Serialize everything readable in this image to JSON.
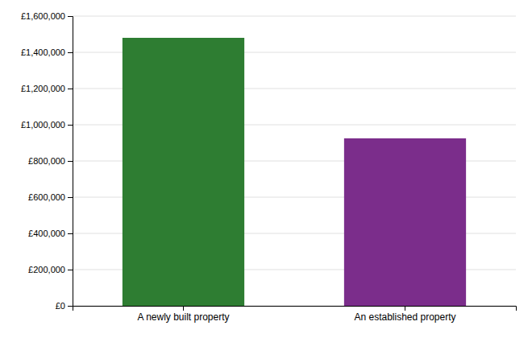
{
  "chart_data": {
    "type": "bar",
    "categories": [
      "A newly built property",
      "An established property"
    ],
    "values": [
      1480000,
      925000
    ],
    "colors": [
      "#2e7d32",
      "#7b2d8b"
    ],
    "ylim": [
      0,
      1600000
    ],
    "yticks": [
      {
        "value": 0,
        "label": "£0"
      },
      {
        "value": 200000,
        "label": "£200,000"
      },
      {
        "value": 400000,
        "label": "£400,000"
      },
      {
        "value": 600000,
        "label": "£600,000"
      },
      {
        "value": 800000,
        "label": "£800,000"
      },
      {
        "value": 1000000,
        "label": "£1,000,000"
      },
      {
        "value": 1200000,
        "label": "£1,200,000"
      },
      {
        "value": 1400000,
        "label": "£1,400,000"
      },
      {
        "value": 1600000,
        "label": "£1,600,000"
      }
    ],
    "grid": true
  }
}
